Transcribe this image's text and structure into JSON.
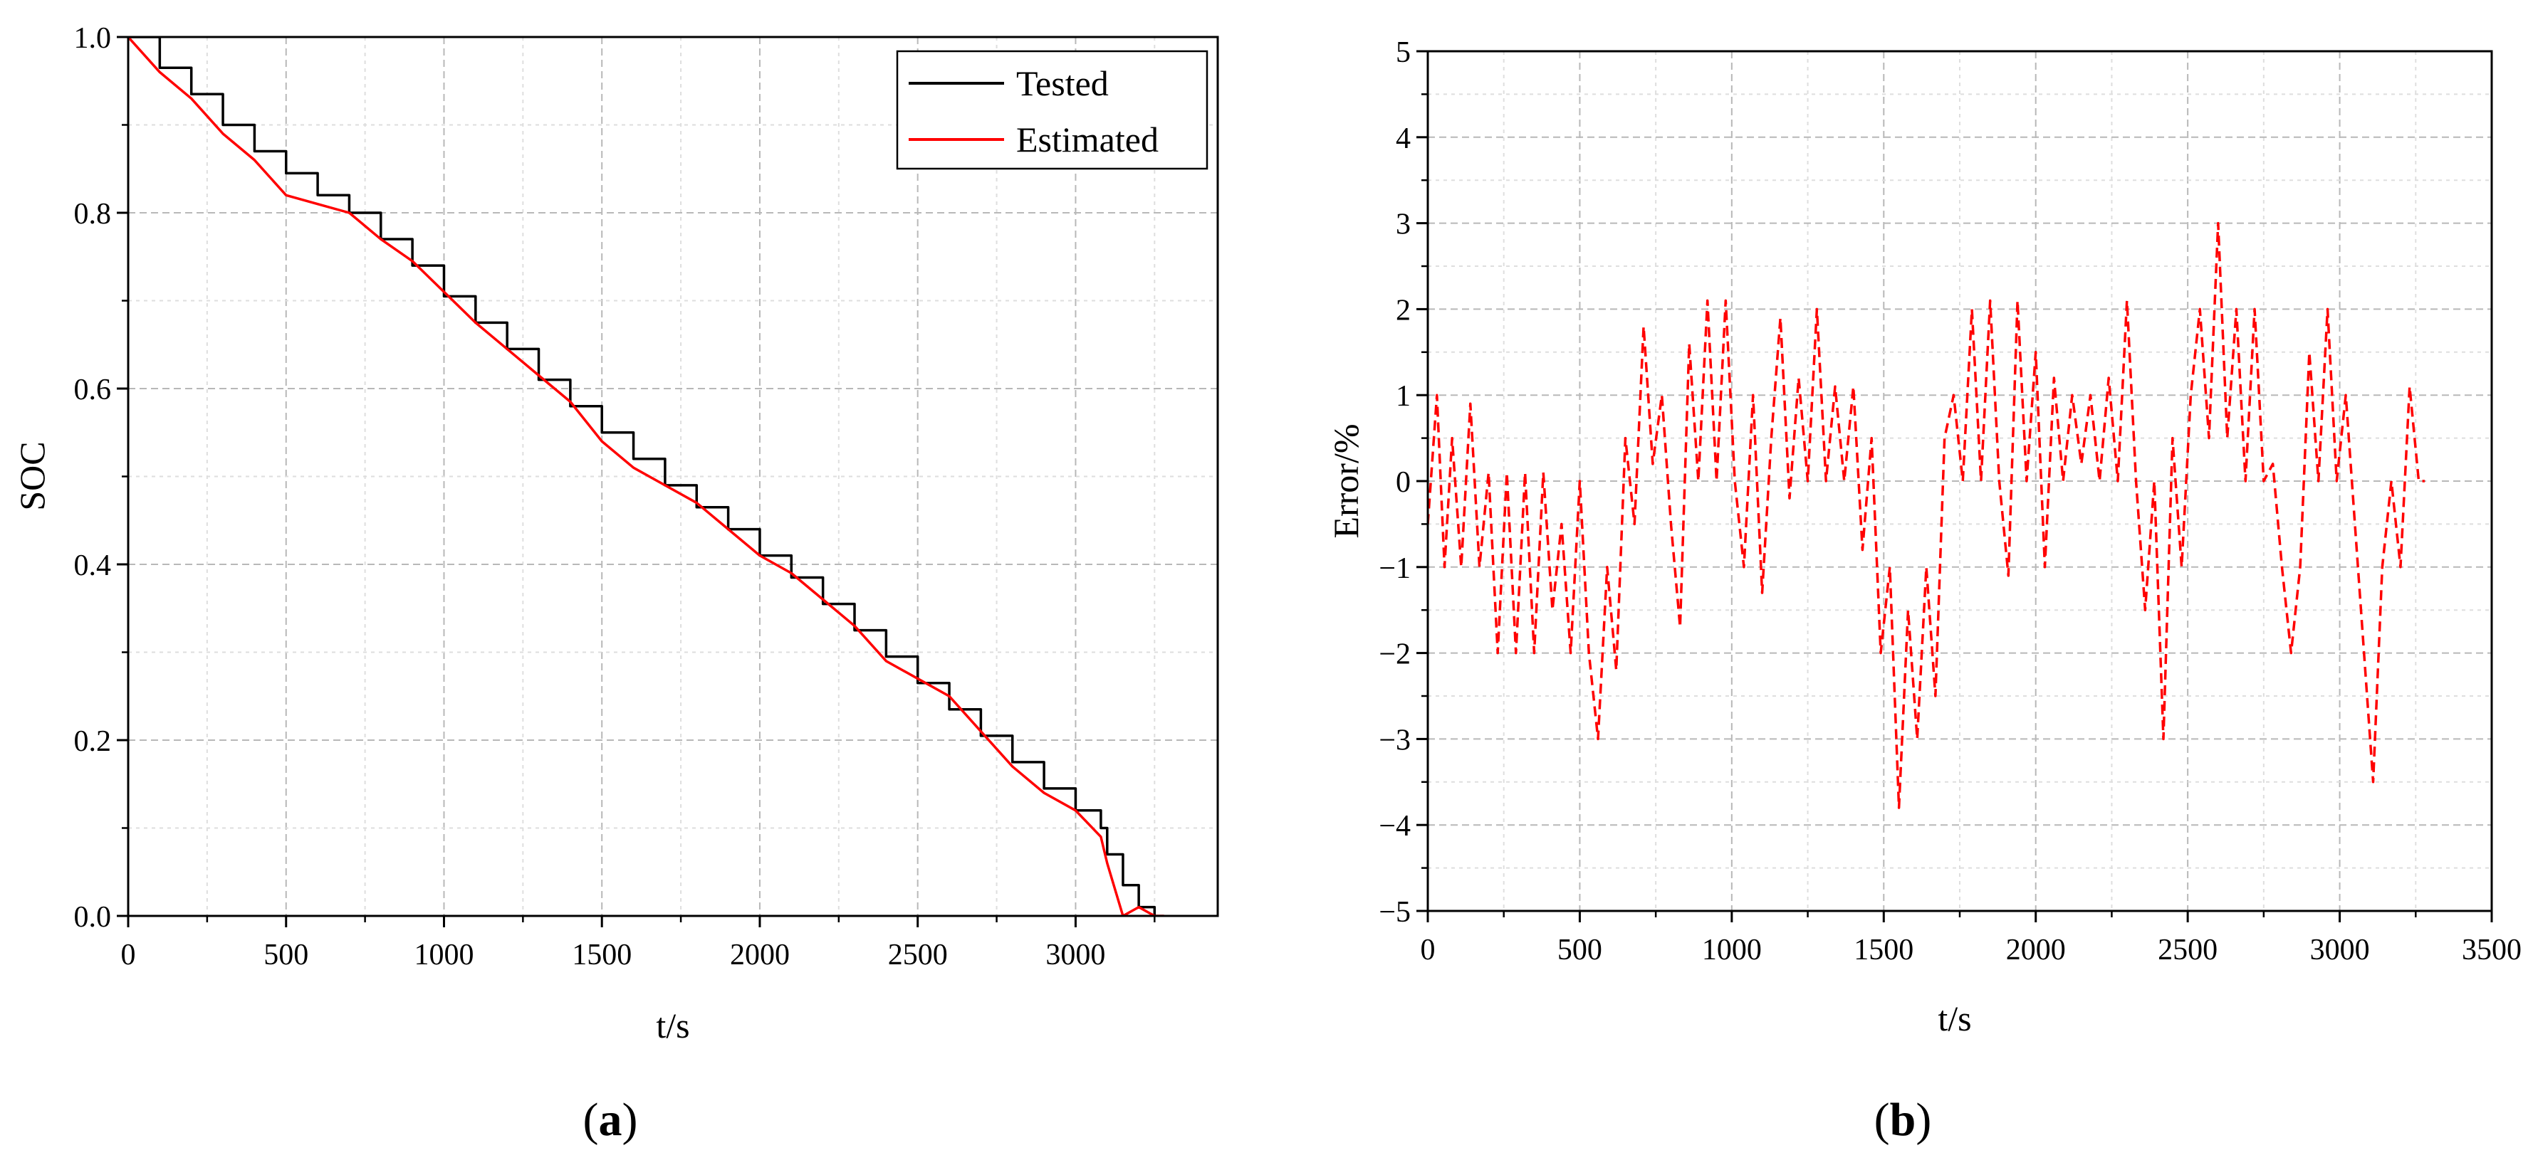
{
  "chart_data": [
    {
      "panel_label": "a",
      "type": "line",
      "title": "",
      "xlabel": "t/s",
      "ylabel": "SOC",
      "xlim": [
        0,
        3450
      ],
      "ylim": [
        0,
        1.0
      ],
      "x_ticks": [
        0,
        500,
        1000,
        1500,
        2000,
        2500,
        3000
      ],
      "x_tick_labels": [
        "0",
        "500",
        "1000",
        "1500",
        "2000",
        "2500",
        "3000"
      ],
      "y_ticks": [
        0,
        0.2,
        0.4,
        0.6,
        0.8,
        1.0
      ],
      "y_tick_labels": [
        "0.0",
        "0.2",
        "0.4",
        "0.6",
        "0.8",
        "1.0"
      ],
      "grid": true,
      "legend_position": "top-right",
      "series": [
        {
          "name": "Tested",
          "color": "#000000",
          "style": "step",
          "x": [
            0,
            100,
            200,
            300,
            400,
            500,
            600,
            700,
            800,
            900,
            1000,
            1100,
            1200,
            1300,
            1400,
            1500,
            1600,
            1700,
            1800,
            1900,
            2000,
            2100,
            2200,
            2300,
            2400,
            2500,
            2600,
            2700,
            2800,
            2900,
            3000,
            3080,
            3100,
            3150,
            3200,
            3250
          ],
          "y": [
            1.0,
            0.965,
            0.935,
            0.9,
            0.87,
            0.845,
            0.82,
            0.8,
            0.77,
            0.74,
            0.705,
            0.675,
            0.645,
            0.61,
            0.58,
            0.55,
            0.52,
            0.49,
            0.465,
            0.44,
            0.41,
            0.385,
            0.355,
            0.325,
            0.295,
            0.265,
            0.235,
            0.205,
            0.175,
            0.145,
            0.12,
            0.1,
            0.07,
            0.035,
            0.01,
            0.0
          ]
        },
        {
          "name": "Estimated",
          "color": "#ff0000",
          "style": "line",
          "x": [
            0,
            100,
            200,
            300,
            400,
            500,
            600,
            700,
            800,
            900,
            1000,
            1100,
            1200,
            1300,
            1400,
            1500,
            1600,
            1700,
            1800,
            1900,
            2000,
            2100,
            2200,
            2300,
            2400,
            2500,
            2600,
            2700,
            2800,
            2900,
            3000,
            3080,
            3100,
            3150,
            3200,
            3250,
            3280
          ],
          "y": [
            1.0,
            0.96,
            0.93,
            0.89,
            0.86,
            0.82,
            0.81,
            0.8,
            0.77,
            0.745,
            0.71,
            0.675,
            0.645,
            0.615,
            0.585,
            0.54,
            0.51,
            0.49,
            0.47,
            0.44,
            0.41,
            0.39,
            0.36,
            0.33,
            0.29,
            0.27,
            0.25,
            0.21,
            0.17,
            0.14,
            0.12,
            0.09,
            0.06,
            0.0,
            0.01,
            0.0,
            0.0
          ]
        }
      ]
    },
    {
      "panel_label": "b",
      "type": "line",
      "title": "",
      "xlabel": "t/s",
      "ylabel": "Error/%",
      "xlim": [
        0,
        3500
      ],
      "ylim": [
        -5,
        5
      ],
      "x_ticks": [
        0,
        500,
        1000,
        1500,
        2000,
        2500,
        3000,
        3500
      ],
      "x_tick_labels": [
        "0",
        "500",
        "1000",
        "1500",
        "2000",
        "2500",
        "3000",
        "3500"
      ],
      "y_ticks": [
        -5,
        -4,
        -3,
        -2,
        -1,
        0,
        1,
        2,
        3,
        4,
        5
      ],
      "y_tick_labels": [
        "−5",
        "−4",
        "−3",
        "−2",
        "−1",
        "0",
        "1",
        "2",
        "3",
        "4",
        "5"
      ],
      "grid": true,
      "series": [
        {
          "name": "Error",
          "color": "#ff0000",
          "style": "dashed",
          "x": [
            0,
            30,
            55,
            80,
            110,
            140,
            170,
            200,
            230,
            260,
            290,
            320,
            350,
            380,
            410,
            440,
            470,
            500,
            530,
            560,
            590,
            620,
            650,
            680,
            710,
            740,
            770,
            800,
            830,
            860,
            890,
            920,
            950,
            980,
            1010,
            1040,
            1070,
            1100,
            1130,
            1160,
            1190,
            1220,
            1250,
            1280,
            1310,
            1340,
            1370,
            1400,
            1430,
            1460,
            1490,
            1520,
            1550,
            1580,
            1610,
            1640,
            1670,
            1700,
            1730,
            1760,
            1790,
            1820,
            1850,
            1880,
            1910,
            1940,
            1970,
            2000,
            2030,
            2060,
            2090,
            2120,
            2150,
            2180,
            2210,
            2240,
            2270,
            2300,
            2330,
            2360,
            2390,
            2420,
            2450,
            2480,
            2510,
            2540,
            2570,
            2600,
            2630,
            2660,
            2690,
            2720,
            2750,
            2780,
            2810,
            2840,
            2870,
            2900,
            2930,
            2960,
            2990,
            3020,
            3050,
            3080,
            3110,
            3140,
            3170,
            3200,
            3230,
            3260,
            3280
          ],
          "y": [
            -0.5,
            1.0,
            -1.0,
            0.5,
            -1.0,
            0.9,
            -1.0,
            0.1,
            -2.0,
            0.1,
            -2.0,
            0.1,
            -2.0,
            0.1,
            -1.5,
            -0.5,
            -2.0,
            0.0,
            -2.0,
            -3.0,
            -1.0,
            -2.2,
            0.5,
            -0.5,
            1.8,
            0.2,
            1.0,
            -0.5,
            -1.7,
            1.6,
            0.0,
            2.1,
            0.0,
            2.1,
            0.0,
            -1.0,
            1.0,
            -1.3,
            0.5,
            1.9,
            -0.2,
            1.2,
            0.0,
            2.0,
            0.0,
            1.1,
            0.0,
            1.1,
            -0.8,
            0.5,
            -2.0,
            -1.0,
            -3.8,
            -1.5,
            -3.0,
            -1.0,
            -2.5,
            0.5,
            1.0,
            0.0,
            2.0,
            0.0,
            2.1,
            0.0,
            -1.1,
            2.1,
            0.0,
            1.5,
            -1.0,
            1.2,
            0.0,
            1.0,
            0.2,
            1.0,
            0.0,
            1.2,
            0.0,
            2.1,
            0.0,
            -1.5,
            0.0,
            -3.0,
            0.5,
            -1.0,
            1.0,
            2.0,
            0.5,
            3.0,
            0.5,
            2.0,
            0.0,
            2.0,
            0.0,
            0.2,
            -1.0,
            -2.0,
            -1.0,
            1.5,
            0.0,
            2.0,
            0.0,
            1.0,
            -0.5,
            -2.0,
            -3.5,
            -1.0,
            0.0,
            -1.0,
            1.1,
            0.0,
            0.0
          ]
        }
      ]
    }
  ]
}
